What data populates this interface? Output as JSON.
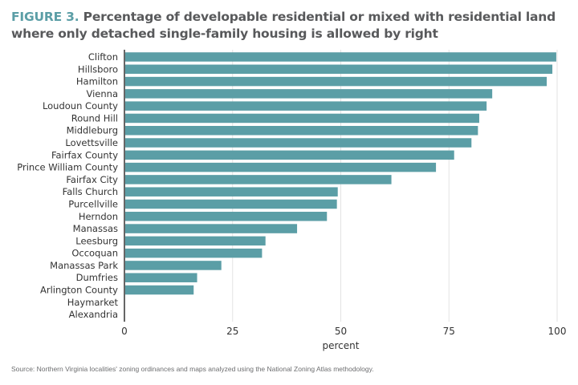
{
  "title": {
    "figure_label": "FIGURE 3.",
    "text": "Percentage of developable residential or mixed with residential land where only detached single-family housing is allowed by right"
  },
  "source": "Source: Northern Virginia localities' zoning ordinances and maps analyzed using the National Zoning Atlas methodology.",
  "colors": {
    "bar": "#5b9ea6",
    "figure_label": "#5b9ea6",
    "title": "#58595b",
    "grid": "#e3e3e3"
  },
  "chart_data": {
    "type": "bar",
    "orientation": "horizontal",
    "title": "Percentage of developable residential or mixed with residential land where only detached single-family housing is allowed by right",
    "xlabel": "percent",
    "ylabel": "",
    "xlim": [
      0,
      100
    ],
    "xticks": [
      0,
      25,
      50,
      75,
      100
    ],
    "grid": "vertical",
    "categories": [
      "Clifton",
      "Hillsboro",
      "Hamilton",
      "Vienna",
      "Loudoun County",
      "Round Hill",
      "Middleburg",
      "Lovettsville",
      "Fairfax County",
      "Prince William County",
      "Fairfax City",
      "Falls Church",
      "Purcellville",
      "Herndon",
      "Manassas",
      "Leesburg",
      "Occoquan",
      "Manassas Park",
      "Dumfries",
      "Arlington County",
      "Haymarket",
      "Alexandria"
    ],
    "values": [
      99.8,
      98.9,
      97.6,
      85.0,
      83.7,
      82.0,
      81.7,
      80.2,
      76.2,
      72.0,
      61.7,
      49.3,
      49.1,
      46.8,
      39.9,
      32.6,
      31.8,
      22.4,
      16.8,
      16.0,
      0,
      0
    ]
  }
}
